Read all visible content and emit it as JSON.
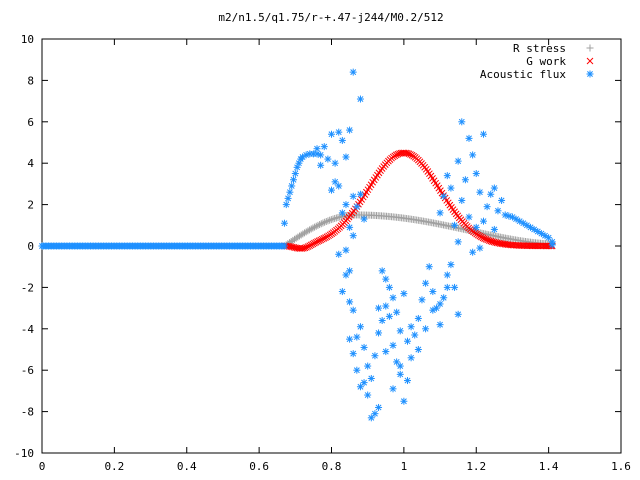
{
  "chart_data": {
    "type": "scatter",
    "title": "m2/n1.5/q1.75/r-+.47-j244/M0.2/512",
    "xlabel": "",
    "ylabel": "",
    "xlim": [
      0,
      1.6
    ],
    "ylim": [
      -10,
      10
    ],
    "x_ticks": [
      0,
      0.2,
      0.4,
      0.6,
      0.8,
      1,
      1.2,
      1.4,
      1.6
    ],
    "y_ticks": [
      -10,
      -8,
      -6,
      -4,
      -2,
      0,
      2,
      4,
      6,
      8,
      10
    ],
    "grid": false,
    "legend_position": "top-right",
    "series": [
      {
        "name": "R stress",
        "marker": "plus",
        "color": "#a0a0a0",
        "x_range": [
          0.67,
          1.41
        ],
        "peak": {
          "x": 0.87,
          "y": 1.5
        },
        "end_y": 0.1
      },
      {
        "name": "G work",
        "marker": "cross",
        "color": "#ff0000",
        "x_range": [
          0.67,
          1.41
        ],
        "peak": {
          "x": 1.0,
          "y": 4.5
        },
        "dip": {
          "x": 0.72,
          "y": -0.2
        }
      },
      {
        "name": "Acoustic flux",
        "marker": "star",
        "color": "#1e90ff",
        "flat_segment": {
          "x_range": [
            0,
            0.67
          ],
          "y": 0
        },
        "rise_points": [
          [
            0.67,
            1.1
          ],
          [
            0.675,
            2.0
          ],
          [
            0.68,
            2.3
          ],
          [
            0.685,
            2.6
          ],
          [
            0.69,
            2.9
          ],
          [
            0.695,
            3.2
          ],
          [
            0.7,
            3.5
          ],
          [
            0.705,
            3.8
          ],
          [
            0.71,
            4.0
          ],
          [
            0.715,
            4.2
          ],
          [
            0.72,
            4.3
          ],
          [
            0.73,
            4.4
          ],
          [
            0.74,
            4.45
          ],
          [
            0.75,
            4.45
          ],
          [
            0.76,
            4.45
          ],
          [
            0.77,
            4.4
          ]
        ],
        "tail_points": [
          [
            1.28,
            1.5
          ],
          [
            1.29,
            1.45
          ],
          [
            1.3,
            1.4
          ],
          [
            1.31,
            1.3
          ],
          [
            1.32,
            1.2
          ],
          [
            1.33,
            1.1
          ],
          [
            1.34,
            1.0
          ],
          [
            1.35,
            0.9
          ],
          [
            1.36,
            0.8
          ],
          [
            1.37,
            0.7
          ],
          [
            1.38,
            0.6
          ],
          [
            1.39,
            0.5
          ],
          [
            1.4,
            0.4
          ],
          [
            1.41,
            0.2
          ],
          [
            1.41,
            0.05
          ]
        ],
        "scatter_points": [
          [
            0.76,
            4.7
          ],
          [
            0.77,
            3.9
          ],
          [
            0.78,
            4.8
          ],
          [
            0.79,
            4.2
          ],
          [
            0.8,
            5.4
          ],
          [
            0.81,
            4.0
          ],
          [
            0.82,
            5.5
          ],
          [
            0.83,
            5.1
          ],
          [
            0.84,
            4.3
          ],
          [
            0.85,
            5.6
          ],
          [
            0.8,
            2.7
          ],
          [
            0.81,
            3.1
          ],
          [
            0.82,
            2.9
          ],
          [
            0.84,
            2.0
          ],
          [
            0.86,
            2.4
          ],
          [
            0.87,
            1.9
          ],
          [
            0.88,
            2.5
          ],
          [
            0.89,
            1.3
          ],
          [
            0.83,
            1.6
          ],
          [
            0.85,
            0.9
          ],
          [
            0.86,
            0.5
          ],
          [
            0.84,
            -0.2
          ],
          [
            0.82,
            -0.4
          ],
          [
            0.85,
            -1.2
          ],
          [
            0.86,
            8.4
          ],
          [
            0.88,
            7.1
          ],
          [
            0.84,
            -1.4
          ],
          [
            0.83,
            -2.2
          ],
          [
            0.85,
            -2.7
          ],
          [
            0.86,
            -3.1
          ],
          [
            0.87,
            -4.4
          ],
          [
            0.88,
            -3.9
          ],
          [
            0.89,
            -4.9
          ],
          [
            0.9,
            -5.8
          ],
          [
            0.85,
            -4.5
          ],
          [
            0.86,
            -5.2
          ],
          [
            0.87,
            -6.0
          ],
          [
            0.88,
            -6.8
          ],
          [
            0.89,
            -6.6
          ],
          [
            0.9,
            -7.2
          ],
          [
            0.91,
            -8.3
          ],
          [
            0.92,
            -8.1
          ],
          [
            0.93,
            -7.8
          ],
          [
            0.91,
            -6.4
          ],
          [
            0.92,
            -5.3
          ],
          [
            0.93,
            -4.2
          ],
          [
            0.94,
            -3.6
          ],
          [
            0.95,
            -2.9
          ],
          [
            0.96,
            -2.0
          ],
          [
            0.94,
            -1.2
          ],
          [
            0.95,
            -1.6
          ],
          [
            0.96,
            -3.4
          ],
          [
            0.97,
            -4.8
          ],
          [
            0.98,
            -5.6
          ],
          [
            0.99,
            -6.2
          ],
          [
            1.0,
            -7.5
          ],
          [
            1.01,
            -6.5
          ],
          [
            1.02,
            -5.4
          ],
          [
            1.03,
            -4.3
          ],
          [
            1.04,
            -3.5
          ],
          [
            1.05,
            -2.6
          ],
          [
            1.06,
            -1.8
          ],
          [
            1.07,
            -1.0
          ],
          [
            1.08,
            -2.2
          ],
          [
            1.09,
            -3.0
          ],
          [
            1.1,
            -3.8
          ],
          [
            1.11,
            -2.5
          ],
          [
            1.12,
            -1.4
          ],
          [
            1.13,
            -0.9
          ],
          [
            1.14,
            -2.0
          ],
          [
            1.15,
            -3.3
          ],
          [
            0.97,
            -2.5
          ],
          [
            0.98,
            -3.2
          ],
          [
            0.99,
            -4.1
          ],
          [
            1.0,
            -2.3
          ],
          [
            1.02,
            -3.9
          ],
          [
            1.04,
            -5.0
          ],
          [
            1.06,
            -4.0
          ],
          [
            1.08,
            -3.1
          ],
          [
            1.1,
            -2.8
          ],
          [
            1.12,
            -2.0
          ],
          [
            0.93,
            -3.0
          ],
          [
            0.95,
            -5.1
          ],
          [
            0.97,
            -6.9
          ],
          [
            0.99,
            -5.8
          ],
          [
            1.01,
            -4.6
          ],
          [
            1.1,
            1.6
          ],
          [
            1.11,
            2.4
          ],
          [
            1.12,
            3.4
          ],
          [
            1.13,
            2.8
          ],
          [
            1.14,
            1.0
          ],
          [
            1.15,
            4.1
          ],
          [
            1.16,
            2.2
          ],
          [
            1.17,
            3.2
          ],
          [
            1.18,
            5.2
          ],
          [
            1.19,
            4.4
          ],
          [
            1.2,
            3.5
          ],
          [
            1.21,
            2.6
          ],
          [
            1.22,
            1.2
          ],
          [
            1.23,
            1.9
          ],
          [
            1.24,
            2.5
          ],
          [
            1.25,
            0.8
          ],
          [
            1.26,
            1.7
          ],
          [
            1.27,
            2.2
          ],
          [
            1.18,
            1.4
          ],
          [
            1.2,
            0.9
          ],
          [
            1.16,
            6.0
          ],
          [
            1.22,
            5.4
          ],
          [
            1.25,
            2.8
          ],
          [
            1.15,
            0.2
          ],
          [
            1.19,
            -0.3
          ],
          [
            1.21,
            -0.1
          ]
        ]
      }
    ]
  }
}
